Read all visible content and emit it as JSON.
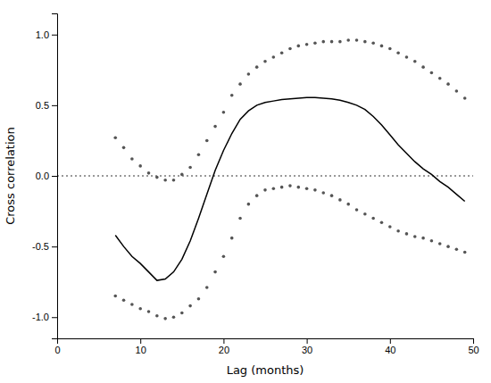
{
  "chart_data": {
    "type": "line",
    "xlabel": "Lag (months)",
    "ylabel": "Cross correlation",
    "xlim": [
      0,
      50
    ],
    "ylim": [
      -1.15,
      1.15
    ],
    "xticks": [
      0,
      10,
      20,
      30,
      40,
      50
    ],
    "yticks": [
      {
        "value": -1.0,
        "label": "-1.0"
      },
      -0.5,
      {
        "value": 0.0,
        "label": "0.0"
      },
      0.5,
      {
        "value": 1.0,
        "label": "1.0"
      }
    ],
    "grid": false,
    "hline": 0.0,
    "series": [
      {
        "type": "line",
        "line_style": "solid",
        "color": "#000000",
        "x": [
          7,
          8,
          9,
          10,
          11,
          12,
          13,
          14,
          15,
          16,
          17,
          18,
          19,
          20,
          21,
          22,
          23,
          24,
          25,
          26,
          27,
          28,
          29,
          30,
          31,
          32,
          33,
          34,
          35,
          36,
          37,
          38,
          39,
          40,
          41,
          42,
          43,
          44,
          45,
          46,
          47,
          48,
          49
        ],
        "values": [
          -0.42,
          -0.5,
          -0.57,
          -0.62,
          -0.68,
          -0.74,
          -0.73,
          -0.68,
          -0.59,
          -0.46,
          -0.3,
          -0.13,
          0.04,
          0.18,
          0.3,
          0.4,
          0.46,
          0.5,
          0.52,
          0.53,
          0.54,
          0.545,
          0.55,
          0.555,
          0.555,
          0.55,
          0.545,
          0.535,
          0.52,
          0.5,
          0.47,
          0.42,
          0.36,
          0.29,
          0.22,
          0.16,
          0.1,
          0.05,
          0.01,
          -0.04,
          -0.08,
          -0.13,
          -0.18
        ]
      },
      {
        "type": "scatter",
        "marker": "point",
        "color": "#555555",
        "x": [
          7,
          8,
          9,
          10,
          11,
          12,
          13,
          14,
          15,
          16,
          17,
          18,
          19,
          20,
          21,
          22,
          23,
          24,
          25,
          26,
          27,
          28,
          29,
          30,
          31,
          32,
          33,
          34,
          35,
          36,
          37,
          38,
          39,
          40,
          41,
          42,
          43,
          44,
          45,
          46,
          47,
          48,
          49
        ],
        "values": [
          0.27,
          0.2,
          0.12,
          0.07,
          0.02,
          -0.01,
          -0.03,
          -0.03,
          0.01,
          0.06,
          0.15,
          0.25,
          0.35,
          0.45,
          0.57,
          0.65,
          0.72,
          0.77,
          0.81,
          0.84,
          0.87,
          0.9,
          0.92,
          0.93,
          0.94,
          0.95,
          0.95,
          0.95,
          0.96,
          0.96,
          0.95,
          0.94,
          0.92,
          0.9,
          0.87,
          0.84,
          0.81,
          0.77,
          0.73,
          0.69,
          0.65,
          0.6,
          0.55
        ]
      },
      {
        "type": "scatter",
        "marker": "point",
        "color": "#555555",
        "x": [
          7,
          8,
          9,
          10,
          11,
          12,
          13,
          14,
          15,
          16,
          17,
          18,
          19,
          20,
          21,
          22,
          23,
          24,
          25,
          26,
          27,
          28,
          29,
          30,
          31,
          32,
          33,
          34,
          35,
          36,
          37,
          38,
          39,
          40,
          41,
          42,
          43,
          44,
          45,
          46,
          47,
          48,
          49
        ],
        "values": [
          -0.85,
          -0.88,
          -0.91,
          -0.94,
          -0.96,
          -0.99,
          -1.01,
          -1.0,
          -0.97,
          -0.92,
          -0.87,
          -0.79,
          -0.68,
          -0.57,
          -0.44,
          -0.3,
          -0.2,
          -0.14,
          -0.1,
          -0.09,
          -0.08,
          -0.07,
          -0.08,
          -0.09,
          -0.1,
          -0.12,
          -0.14,
          -0.17,
          -0.2,
          -0.24,
          -0.27,
          -0.3,
          -0.33,
          -0.36,
          -0.39,
          -0.41,
          -0.43,
          -0.44,
          -0.46,
          -0.48,
          -0.5,
          -0.52,
          -0.54
        ]
      }
    ]
  }
}
